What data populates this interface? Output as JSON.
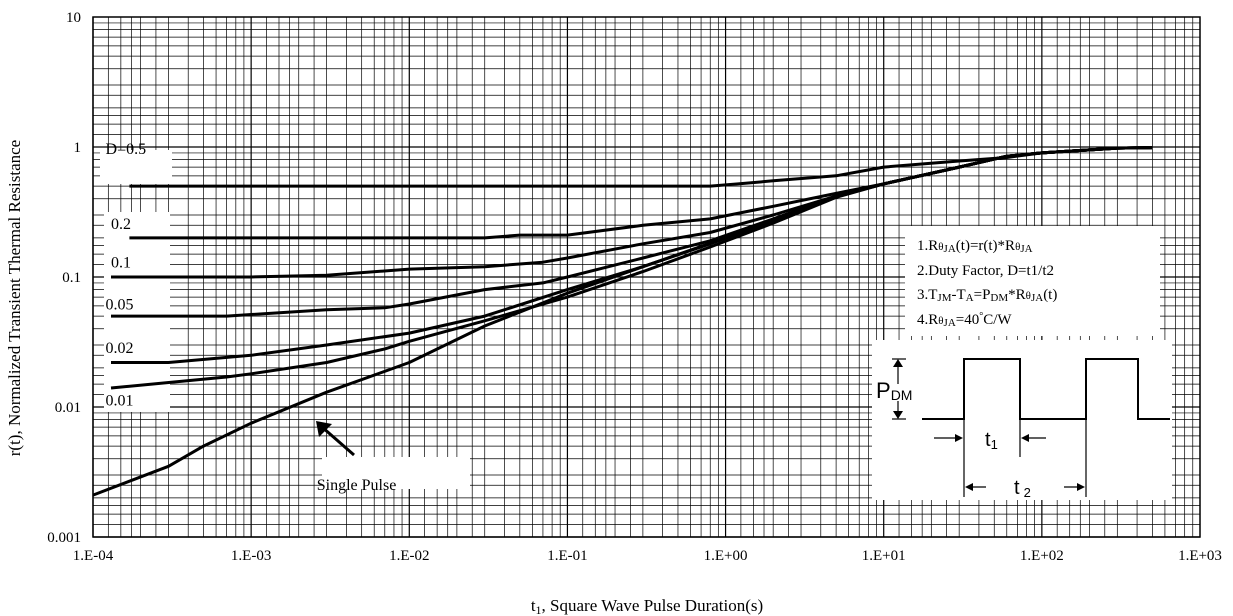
{
  "chart_data": {
    "type": "line",
    "title": "",
    "xlabel": "t1, Square Wave Pulse Duration(s)",
    "xlabel_main": "t",
    "xlabel_sub": "1",
    "xlabel_rest": ", Square Wave Pulse Duration(s)",
    "ylabel": "r(t), Normalized Transient Thermal Resistance",
    "x_scale": "log",
    "y_scale": "log",
    "xlim": [
      0.0001,
      1000
    ],
    "ylim": [
      0.001,
      10
    ],
    "grid": true,
    "x_ticks": [
      {
        "value": 0.0001,
        "label": "1.E-04"
      },
      {
        "value": 0.001,
        "label": "1.E-03"
      },
      {
        "value": 0.01,
        "label": "1.E-02"
      },
      {
        "value": 0.1,
        "label": "1.E-01"
      },
      {
        "value": 1,
        "label": "1.E+00"
      },
      {
        "value": 10,
        "label": "1.E+01"
      },
      {
        "value": 100,
        "label": "1.E+02"
      },
      {
        "value": 1000,
        "label": "1.E+03"
      }
    ],
    "y_ticks": [
      {
        "value": 0.001,
        "label": "0.001"
      },
      {
        "value": 0.01,
        "label": "0.01"
      },
      {
        "value": 0.1,
        "label": "0.1"
      },
      {
        "value": 1,
        "label": "1"
      },
      {
        "value": 10,
        "label": "10"
      }
    ],
    "series": [
      {
        "name": "D=0.5",
        "label_x": 0.00012,
        "label_y": 0.88,
        "points": [
          [
            0.00017,
            0.5
          ],
          [
            0.001,
            0.5
          ],
          [
            0.01,
            0.5
          ],
          [
            0.1,
            0.5
          ],
          [
            0.8,
            0.5
          ],
          [
            1.2,
            0.52
          ],
          [
            2,
            0.55
          ],
          [
            5,
            0.6
          ],
          [
            10,
            0.7
          ],
          [
            30,
            0.78
          ],
          [
            60,
            0.83
          ],
          [
            100,
            0.9
          ],
          [
            200,
            0.95
          ],
          [
            300,
            0.98
          ],
          [
            500,
            0.99
          ]
        ]
      },
      {
        "name": "0.2",
        "label_x": 0.00013,
        "label_y": 0.235,
        "points": [
          [
            0.00017,
            0.2
          ],
          [
            0.001,
            0.2
          ],
          [
            0.01,
            0.2
          ],
          [
            0.03,
            0.2
          ],
          [
            0.05,
            0.21
          ],
          [
            0.1,
            0.21
          ],
          [
            0.3,
            0.25
          ],
          [
            0.8,
            0.28
          ],
          [
            2,
            0.35
          ],
          [
            5,
            0.44
          ],
          [
            10,
            0.52
          ],
          [
            30,
            0.7
          ],
          [
            60,
            0.85
          ],
          [
            100,
            0.9
          ],
          [
            200,
            0.95
          ],
          [
            300,
            0.98
          ],
          [
            500,
            0.99
          ]
        ]
      },
      {
        "name": "0.1",
        "label_x": 0.00013,
        "label_y": 0.118,
        "points": [
          [
            0.00013,
            0.1
          ],
          [
            0.001,
            0.1
          ],
          [
            0.003,
            0.103
          ],
          [
            0.01,
            0.115
          ],
          [
            0.03,
            0.12
          ],
          [
            0.07,
            0.13
          ],
          [
            0.1,
            0.14
          ],
          [
            0.3,
            0.18
          ],
          [
            0.8,
            0.22
          ],
          [
            2,
            0.3
          ],
          [
            5,
            0.42
          ],
          [
            10,
            0.52
          ],
          [
            30,
            0.7
          ],
          [
            60,
            0.85
          ],
          [
            100,
            0.9
          ],
          [
            200,
            0.95
          ],
          [
            300,
            0.98
          ],
          [
            500,
            0.99
          ]
        ]
      },
      {
        "name": "0.05",
        "label_x": 0.00012,
        "label_y": 0.056,
        "points": [
          [
            0.00013,
            0.05
          ],
          [
            0.0007,
            0.05
          ],
          [
            0.003,
            0.056
          ],
          [
            0.007,
            0.058
          ],
          [
            0.01,
            0.062
          ],
          [
            0.03,
            0.08
          ],
          [
            0.07,
            0.09
          ],
          [
            0.1,
            0.1
          ],
          [
            0.3,
            0.14
          ],
          [
            0.8,
            0.19
          ],
          [
            2,
            0.28
          ],
          [
            5,
            0.42
          ],
          [
            10,
            0.52
          ],
          [
            30,
            0.7
          ],
          [
            60,
            0.85
          ],
          [
            100,
            0.9
          ],
          [
            200,
            0.95
          ],
          [
            300,
            0.98
          ],
          [
            500,
            0.99
          ]
        ]
      },
      {
        "name": "0.02",
        "label_x": 0.00012,
        "label_y": 0.026,
        "points": [
          [
            0.00013,
            0.022
          ],
          [
            0.0003,
            0.022
          ],
          [
            0.001,
            0.025
          ],
          [
            0.003,
            0.03
          ],
          [
            0.01,
            0.037
          ],
          [
            0.03,
            0.05
          ],
          [
            0.1,
            0.08
          ],
          [
            0.3,
            0.12
          ],
          [
            0.8,
            0.18
          ],
          [
            2,
            0.27
          ],
          [
            5,
            0.42
          ],
          [
            10,
            0.52
          ],
          [
            30,
            0.7
          ],
          [
            60,
            0.85
          ],
          [
            100,
            0.9
          ],
          [
            200,
            0.95
          ],
          [
            300,
            0.98
          ],
          [
            500,
            0.99
          ]
        ]
      },
      {
        "name": "0.01",
        "label_x": 0.00012,
        "label_y": 0.0103,
        "points": [
          [
            0.00013,
            0.014
          ],
          [
            0.0007,
            0.017
          ],
          [
            0.001,
            0.018
          ],
          [
            0.003,
            0.022
          ],
          [
            0.007,
            0.028
          ],
          [
            0.01,
            0.032
          ],
          [
            0.03,
            0.046
          ],
          [
            0.1,
            0.07
          ],
          [
            0.3,
            0.11
          ],
          [
            0.8,
            0.17
          ],
          [
            2,
            0.26
          ],
          [
            5,
            0.41
          ],
          [
            10,
            0.52
          ],
          [
            30,
            0.7
          ],
          [
            60,
            0.85
          ],
          [
            100,
            0.9
          ],
          [
            200,
            0.95
          ],
          [
            300,
            0.98
          ],
          [
            500,
            0.99
          ]
        ]
      },
      {
        "name": "Single Pulse",
        "label_x": 0.0026,
        "label_y": 0.0023,
        "points": [
          [
            0.0001,
            0.0021
          ],
          [
            0.0003,
            0.0035
          ],
          [
            0.0005,
            0.005
          ],
          [
            0.001,
            0.0075
          ],
          [
            0.003,
            0.013
          ],
          [
            0.01,
            0.022
          ],
          [
            0.03,
            0.042
          ],
          [
            0.1,
            0.075
          ],
          [
            0.3,
            0.12
          ],
          [
            1,
            0.2
          ],
          [
            3,
            0.32
          ],
          [
            5,
            0.42
          ],
          [
            10,
            0.52
          ],
          [
            30,
            0.7
          ],
          [
            60,
            0.85
          ],
          [
            100,
            0.9
          ],
          [
            200,
            0.95
          ],
          [
            300,
            0.98
          ],
          [
            500,
            0.99
          ]
        ]
      }
    ],
    "annotations": {
      "notes": [
        {
          "main": "1.R",
          "theta": "θJA",
          "rest": "(t)=r(t)*R",
          "theta2": "θJA",
          "tail": ""
        },
        {
          "text": "2.Duty Factor, D=t1/t2"
        },
        {
          "text": "3.TJM-TA=PDM*RθJA(t)"
        },
        {
          "text": "4.RθJA=40°C/W"
        }
      ],
      "note_lines": [
        "1.RθJA(t)=r(t)*RθJA",
        "2.Duty Factor, D=t1/t2",
        "3.TJM-TA=PDM*RθJA(t)",
        "4.RθJA=40°C/W"
      ],
      "diagram": {
        "pdm_label": "P",
        "pdm_sub": "DM",
        "t1_label": "t",
        "t1_sub": "1",
        "t2_label": "t",
        "t2_sub": "2"
      }
    }
  }
}
